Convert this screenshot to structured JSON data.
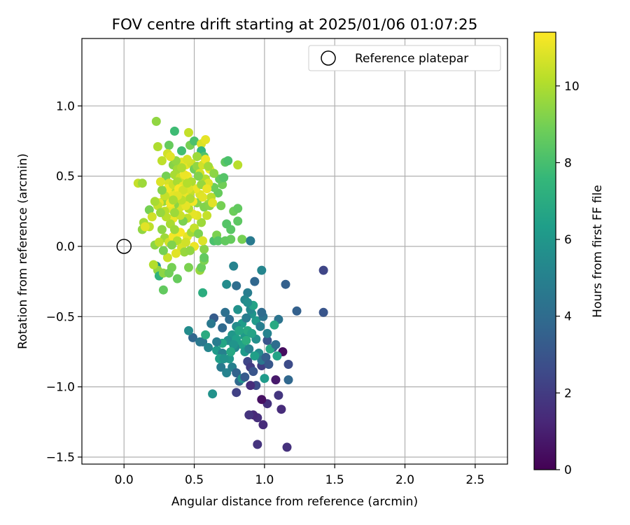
{
  "chart_data": {
    "type": "scatter",
    "title": "FOV centre drift starting at 2025/01/06 01:07:25",
    "xlabel": "Angular distance from reference (arcmin)",
    "ylabel": "Rotation from reference (arcmin)",
    "xlim": [
      -0.3,
      2.73
    ],
    "ylim": [
      -1.55,
      1.48
    ],
    "x_ticks": [
      0.0,
      0.5,
      1.0,
      1.5,
      2.0,
      2.5
    ],
    "x_tick_labels": [
      "0.0",
      "0.5",
      "1.0",
      "1.5",
      "2.0",
      "2.5"
    ],
    "y_ticks": [
      -1.5,
      -1.0,
      -0.5,
      0.0,
      0.5,
      1.0
    ],
    "y_tick_labels": [
      "−1.5",
      "−1.0",
      "−0.5",
      "0.0",
      "0.5",
      "1.0"
    ],
    "grid": true,
    "legend": {
      "placement": "upper-right",
      "entries": [
        "Reference platepar"
      ]
    },
    "colorbar": {
      "label": "Hours from first FF file",
      "colormap": "viridis",
      "range": [
        0,
        11.4
      ],
      "ticks": [
        0,
        2,
        4,
        6,
        8,
        10
      ],
      "tick_labels": [
        "0",
        "2",
        "4",
        "6",
        "8",
        "10"
      ]
    },
    "reference_point": {
      "x": 0.0,
      "y": 0.0
    },
    "points_note": "each point: [x, y, hours]",
    "points": [
      [
        1.42,
        -0.17,
        2.4
      ],
      [
        1.42,
        -0.47,
        3.0
      ],
      [
        1.23,
        -0.46,
        3.5
      ],
      [
        1.17,
        -0.84,
        2.6
      ],
      [
        1.17,
        -0.95,
        3.8
      ],
      [
        1.16,
        -1.43,
        1.6
      ],
      [
        1.12,
        -1.16,
        1.4
      ],
      [
        1.1,
        -1.06,
        1.8
      ],
      [
        1.08,
        -0.95,
        0.8
      ],
      [
        1.13,
        -0.75,
        0.4
      ],
      [
        1.02,
        -1.12,
        1.6
      ],
      [
        0.99,
        -1.27,
        1.4
      ],
      [
        0.95,
        -1.41,
        1.7
      ],
      [
        0.95,
        -1.22,
        1.5
      ],
      [
        0.92,
        -1.2,
        1.3
      ],
      [
        0.89,
        -1.2,
        1.7
      ],
      [
        0.98,
        -1.09,
        0.5
      ],
      [
        0.98,
        -0.85,
        2.1
      ],
      [
        1.02,
        -0.67,
        3.0
      ],
      [
        1.06,
        -0.72,
        3.3
      ],
      [
        1.1,
        -0.52,
        4.4
      ],
      [
        1.15,
        -0.27,
        3.5
      ],
      [
        0.93,
        -0.25,
        3.8
      ],
      [
        0.9,
        0.04,
        4.7
      ],
      [
        0.98,
        -0.17,
        5.2
      ],
      [
        0.8,
        -0.28,
        4.1
      ],
      [
        0.78,
        -0.14,
        5.1
      ],
      [
        0.73,
        -0.27,
        5.5
      ],
      [
        0.88,
        -0.33,
        4.8
      ],
      [
        0.86,
        -0.38,
        5.3
      ],
      [
        0.81,
        -0.45,
        5.8
      ],
      [
        0.75,
        -0.52,
        4.0
      ],
      [
        0.7,
        -0.58,
        3.9
      ],
      [
        0.72,
        -0.47,
        4.2
      ],
      [
        0.64,
        -0.51,
        3.3
      ],
      [
        0.62,
        -0.55,
        4.6
      ],
      [
        0.56,
        -0.68,
        4.5
      ],
      [
        0.49,
        -0.65,
        3.8
      ],
      [
        0.46,
        -0.6,
        5.5
      ],
      [
        0.6,
        -0.72,
        5.2
      ],
      [
        0.63,
        -1.05,
        5.8
      ],
      [
        0.66,
        -0.74,
        6.2
      ],
      [
        0.7,
        -0.76,
        5.0
      ],
      [
        0.69,
        -0.86,
        4.7
      ],
      [
        0.73,
        -0.9,
        5.1
      ],
      [
        0.77,
        -0.86,
        4.9
      ],
      [
        0.8,
        -0.9,
        3.6
      ],
      [
        0.82,
        -0.96,
        3.9
      ],
      [
        0.8,
        -1.04,
        2.2
      ],
      [
        0.84,
        -0.94,
        5.8
      ],
      [
        0.86,
        -0.93,
        3.2
      ],
      [
        0.88,
        -0.82,
        2.4
      ],
      [
        0.9,
        -0.86,
        2.0
      ],
      [
        0.92,
        -0.89,
        3.0
      ],
      [
        0.94,
        -0.99,
        2.6
      ],
      [
        0.9,
        -0.99,
        1.4
      ],
      [
        0.84,
        -0.7,
        6.5
      ],
      [
        0.86,
        -0.64,
        6.1
      ],
      [
        0.88,
        -0.6,
        6.9
      ],
      [
        0.84,
        -0.55,
        6.3
      ],
      [
        0.8,
        -0.57,
        5.5
      ],
      [
        0.77,
        -0.63,
        6.0
      ],
      [
        0.74,
        -0.67,
        5.6
      ],
      [
        0.7,
        -0.69,
        6.7
      ],
      [
        0.68,
        -0.8,
        6.4
      ],
      [
        0.94,
        -0.53,
        6.2
      ],
      [
        0.97,
        -0.57,
        4.9
      ],
      [
        0.94,
        -0.66,
        5.7
      ],
      [
        0.96,
        -0.76,
        5.4
      ],
      [
        0.98,
        -0.81,
        4.5
      ],
      [
        1.0,
        -0.94,
        6.2
      ],
      [
        1.01,
        -0.79,
        3.4
      ],
      [
        1.03,
        -0.84,
        3.1
      ],
      [
        1.04,
        -0.73,
        6.8
      ],
      [
        1.08,
        -0.7,
        4.1
      ],
      [
        1.09,
        -0.78,
        6.6
      ],
      [
        1.07,
        -0.56,
        6.9
      ],
      [
        1.02,
        -0.62,
        5.1
      ],
      [
        0.99,
        -0.5,
        4.4
      ],
      [
        0.98,
        -0.47,
        4.0
      ],
      [
        0.91,
        -0.48,
        5.9
      ],
      [
        0.87,
        -0.51,
        4.8
      ],
      [
        0.9,
        -0.45,
        5.4
      ],
      [
        0.92,
        -0.42,
        6.6
      ],
      [
        0.88,
        -0.4,
        5.6
      ],
      [
        0.82,
        -0.6,
        6.7
      ],
      [
        0.79,
        -0.72,
        5.3
      ],
      [
        0.75,
        -0.8,
        6.0
      ],
      [
        0.71,
        -0.8,
        5.8
      ],
      [
        0.66,
        -0.68,
        4.8
      ],
      [
        0.58,
        -0.63,
        7.0
      ],
      [
        0.54,
        -0.68,
        4.6
      ],
      [
        0.8,
        -0.66,
        6.4
      ],
      [
        0.78,
        -0.7,
        5.9
      ],
      [
        0.87,
        -0.67,
        7.1
      ],
      [
        0.86,
        -0.75,
        6.1
      ],
      [
        0.89,
        -0.73,
        5.0
      ],
      [
        0.91,
        -0.62,
        6.6
      ],
      [
        0.93,
        -0.78,
        6.4
      ],
      [
        0.76,
        -0.75,
        6.8
      ],
      [
        0.28,
        -0.31,
        8.6
      ],
      [
        0.38,
        -0.23,
        8.7
      ],
      [
        0.34,
        -0.15,
        9.0
      ],
      [
        0.23,
        -0.14,
        5.8
      ],
      [
        0.24,
        -0.17,
        9.5
      ],
      [
        0.25,
        -0.21,
        7.3
      ],
      [
        0.28,
        -0.19,
        9.4
      ],
      [
        0.32,
        -0.19,
        8.9
      ],
      [
        0.21,
        -0.13,
        10.1
      ],
      [
        0.22,
        0.01,
        9.4
      ],
      [
        0.46,
        -0.15,
        9.1
      ],
      [
        0.54,
        -0.17,
        9.6
      ],
      [
        0.55,
        -0.15,
        8.8
      ],
      [
        0.57,
        -0.1,
        9.1
      ],
      [
        0.57,
        -0.02,
        9.3
      ],
      [
        0.57,
        -0.08,
        8.6
      ],
      [
        0.56,
        -0.33,
        7.1
      ],
      [
        0.64,
        0.04,
        8.1
      ],
      [
        0.66,
        0.08,
        9.1
      ],
      [
        0.67,
        0.04,
        8.3
      ],
      [
        0.76,
        0.05,
        8.7
      ],
      [
        0.72,
        0.04,
        8.6
      ],
      [
        0.76,
        0.12,
        8.4
      ],
      [
        0.73,
        0.16,
        8.3
      ],
      [
        0.78,
        0.25,
        8.8
      ],
      [
        0.81,
        0.27,
        8.6
      ],
      [
        0.81,
        0.18,
        8.5
      ],
      [
        0.84,
        0.05,
        9.0
      ],
      [
        0.9,
        0.04,
        4.7
      ],
      [
        0.69,
        0.29,
        9.0
      ],
      [
        0.67,
        0.38,
        8.7
      ],
      [
        0.64,
        0.42,
        8.8
      ],
      [
        0.7,
        0.44,
        8.9
      ],
      [
        0.68,
        0.48,
        8.6
      ],
      [
        0.71,
        0.49,
        8.3
      ],
      [
        0.72,
        0.6,
        8.5
      ],
      [
        0.74,
        0.61,
        8.1
      ],
      [
        0.81,
        0.58,
        10.2
      ],
      [
        0.23,
        0.89,
        9.5
      ],
      [
        0.36,
        0.82,
        7.8
      ],
      [
        0.46,
        0.81,
        10.4
      ],
      [
        0.47,
        0.72,
        9.0
      ],
      [
        0.5,
        0.75,
        8.1
      ],
      [
        0.55,
        0.73,
        10.8
      ],
      [
        0.58,
        0.76,
        11.0
      ],
      [
        0.41,
        0.68,
        7.9
      ],
      [
        0.55,
        0.68,
        7.6
      ],
      [
        0.57,
        0.64,
        8.2
      ],
      [
        0.32,
        0.72,
        8.7
      ],
      [
        0.24,
        0.71,
        10.0
      ],
      [
        0.27,
        0.61,
        10.3
      ],
      [
        0.31,
        0.66,
        10.6
      ],
      [
        0.35,
        0.58,
        9.3
      ],
      [
        0.38,
        0.55,
        9.8
      ],
      [
        0.41,
        0.6,
        10.9
      ],
      [
        0.44,
        0.58,
        11.0
      ],
      [
        0.48,
        0.59,
        10.6
      ],
      [
        0.5,
        0.55,
        8.9
      ],
      [
        0.52,
        0.57,
        9.5
      ],
      [
        0.54,
        0.52,
        10.7
      ],
      [
        0.58,
        0.48,
        10.1
      ],
      [
        0.6,
        0.45,
        10.8
      ],
      [
        0.61,
        0.55,
        11.1
      ],
      [
        0.64,
        0.52,
        9.4
      ],
      [
        0.62,
        0.35,
        10.2
      ],
      [
        0.6,
        0.3,
        9.7
      ],
      [
        0.57,
        0.28,
        9.2
      ],
      [
        0.54,
        0.37,
        10.8
      ],
      [
        0.51,
        0.41,
        11.1
      ],
      [
        0.47,
        0.38,
        10.4
      ],
      [
        0.44,
        0.44,
        10.9
      ],
      [
        0.42,
        0.38,
        11.2
      ],
      [
        0.4,
        0.33,
        9.5
      ],
      [
        0.37,
        0.4,
        10.2
      ],
      [
        0.34,
        0.36,
        11.0
      ],
      [
        0.31,
        0.33,
        10.6
      ],
      [
        0.28,
        0.32,
        9.6
      ],
      [
        0.25,
        0.31,
        11.0
      ],
      [
        0.24,
        0.29,
        10.4
      ],
      [
        0.22,
        0.32,
        9.9
      ],
      [
        0.18,
        0.26,
        9.0
      ],
      [
        0.2,
        0.21,
        10.6
      ],
      [
        0.18,
        0.14,
        10.3
      ],
      [
        0.14,
        0.17,
        9.8
      ],
      [
        0.13,
        0.12,
        9.5
      ],
      [
        0.1,
        0.45,
        10.4
      ],
      [
        0.13,
        0.45,
        9.7
      ],
      [
        0.15,
        0.14,
        10.9
      ],
      [
        0.3,
        0.5,
        9.0
      ],
      [
        0.32,
        0.45,
        10.7
      ],
      [
        0.36,
        0.51,
        9.9
      ],
      [
        0.4,
        0.49,
        10.5
      ],
      [
        0.45,
        0.5,
        11.2
      ],
      [
        0.48,
        0.46,
        10.0
      ],
      [
        0.55,
        0.44,
        9.6
      ],
      [
        0.59,
        0.41,
        11.1
      ],
      [
        0.61,
        0.29,
        9.3
      ],
      [
        0.59,
        0.22,
        10.4
      ],
      [
        0.55,
        0.17,
        9.7
      ],
      [
        0.52,
        0.22,
        10.9
      ],
      [
        0.49,
        0.23,
        11.0
      ],
      [
        0.45,
        0.2,
        10.3
      ],
      [
        0.42,
        0.18,
        9.1
      ],
      [
        0.38,
        0.24,
        10.8
      ],
      [
        0.35,
        0.2,
        11.1
      ],
      [
        0.33,
        0.16,
        9.9
      ],
      [
        0.3,
        0.21,
        10.2
      ],
      [
        0.27,
        0.12,
        9.4
      ],
      [
        0.29,
        0.06,
        9.7
      ],
      [
        0.32,
        0.03,
        10.6
      ],
      [
        0.35,
        0.07,
        11.2
      ],
      [
        0.38,
        0.04,
        10.1
      ],
      [
        0.41,
        -0.01,
        10.7
      ],
      [
        0.43,
        -0.04,
        9.6
      ],
      [
        0.37,
        -0.05,
        10.9
      ],
      [
        0.34,
        0.01,
        9.2
      ],
      [
        0.31,
        -0.08,
        10.5
      ],
      [
        0.28,
        -0.03,
        9.0
      ],
      [
        0.25,
        0.03,
        10.3
      ],
      [
        0.45,
        0.07,
        11.0
      ],
      [
        0.48,
        0.1,
        9.8
      ],
      [
        0.5,
        0.13,
        10.4
      ],
      [
        0.53,
        0.09,
        9.1
      ],
      [
        0.56,
        0.04,
        10.8
      ],
      [
        0.5,
        0.0,
        11.1
      ],
      [
        0.47,
        -0.03,
        9.5
      ],
      [
        0.44,
        0.03,
        10.6
      ],
      [
        0.4,
        0.1,
        11.3
      ],
      [
        0.36,
        0.12,
        9.7
      ],
      [
        0.46,
        0.27,
        10.1
      ],
      [
        0.52,
        0.31,
        9.3
      ],
      [
        0.56,
        0.35,
        10.9
      ],
      [
        0.44,
        0.35,
        11.1
      ],
      [
        0.4,
        0.28,
        10.7
      ],
      [
        0.36,
        0.3,
        9.4
      ],
      [
        0.33,
        0.27,
        11.0
      ],
      [
        0.29,
        0.25,
        10.2
      ],
      [
        0.26,
        0.24,
        9.6
      ],
      [
        0.31,
        0.41,
        11.2
      ],
      [
        0.35,
        0.44,
        10.5
      ],
      [
        0.38,
        0.46,
        9.9
      ],
      [
        0.42,
        0.43,
        11.0
      ],
      [
        0.46,
        0.41,
        10.8
      ],
      [
        0.53,
        0.5,
        9.2
      ],
      [
        0.56,
        0.58,
        10.6
      ],
      [
        0.58,
        0.62,
        11.1
      ],
      [
        0.6,
        0.57,
        9.8
      ],
      [
        0.63,
        0.31,
        10.9
      ],
      [
        0.49,
        0.32,
        11.2
      ],
      [
        0.47,
        0.34,
        10.0
      ],
      [
        0.44,
        0.29,
        11.0
      ],
      [
        0.4,
        0.22,
        10.5
      ],
      [
        0.36,
        0.24,
        9.7
      ],
      [
        0.33,
        0.31,
        11.2
      ],
      [
        0.29,
        0.36,
        10.4
      ],
      [
        0.27,
        0.4,
        9.3
      ],
      [
        0.26,
        0.46,
        10.8
      ],
      [
        0.37,
        0.37,
        11.0
      ],
      [
        0.41,
        0.33,
        10.3
      ],
      [
        0.43,
        0.51,
        11.1
      ],
      [
        0.41,
        0.56,
        10.0
      ],
      [
        0.37,
        0.61,
        9.5
      ],
      [
        0.33,
        0.64,
        10.9
      ],
      [
        0.45,
        0.62,
        10.7
      ],
      [
        0.52,
        0.64,
        9.7
      ],
      [
        0.39,
        0.41,
        11.3
      ],
      [
        0.42,
        0.4,
        10.6
      ],
      [
        0.38,
        0.36,
        10.9
      ],
      [
        0.35,
        0.33,
        9.9
      ],
      [
        0.45,
        0.45,
        10.1
      ]
    ]
  }
}
